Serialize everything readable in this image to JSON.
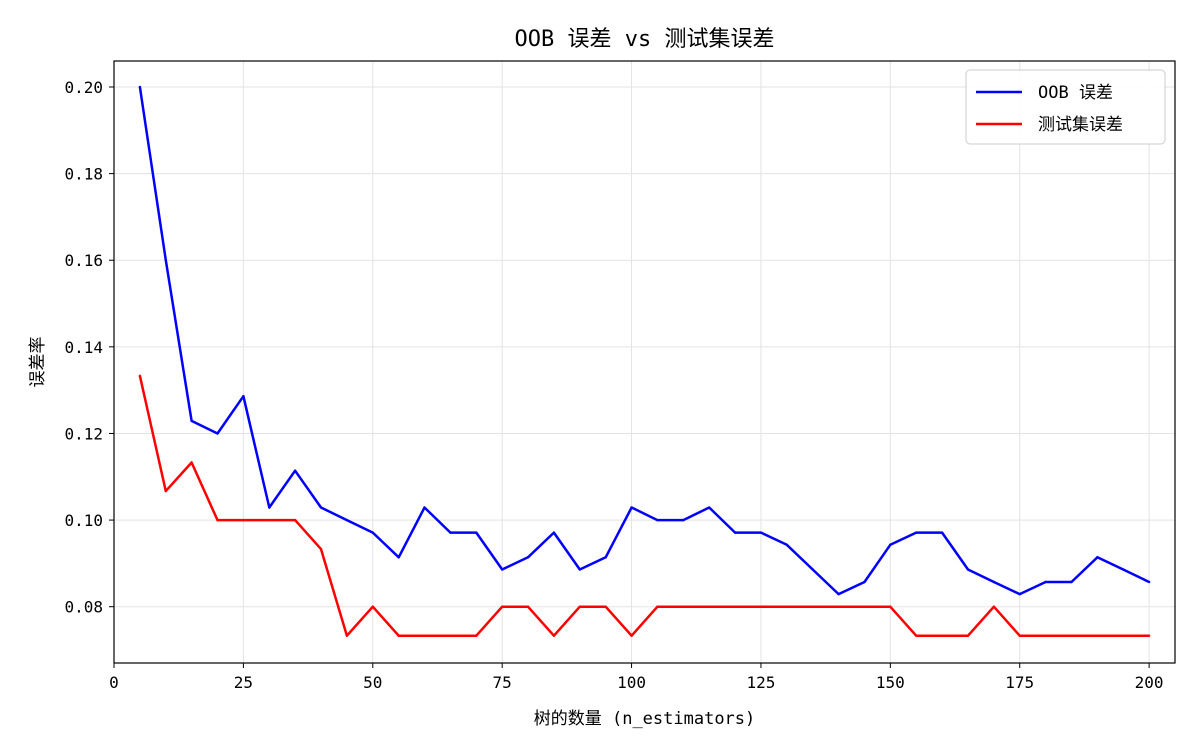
{
  "chart_data": {
    "type": "line",
    "title": "OOB 误差 vs 测试集误差",
    "xlabel": "树的数量 (n_estimators)",
    "ylabel": "误差率",
    "xlim": [
      0,
      205
    ],
    "ylim": [
      0.067,
      0.206
    ],
    "xticks": [
      0,
      25,
      50,
      75,
      100,
      125,
      150,
      175,
      200
    ],
    "yticks": [
      0.08,
      0.1,
      0.12,
      0.14,
      0.16,
      0.18,
      0.2
    ],
    "ytick_labels": [
      "0.08",
      "0.10",
      "0.12",
      "0.14",
      "0.16",
      "0.18",
      "0.20"
    ],
    "grid": true,
    "legend_position": "top-right",
    "x": [
      5,
      10,
      15,
      20,
      25,
      30,
      35,
      40,
      45,
      50,
      55,
      60,
      65,
      70,
      75,
      80,
      85,
      90,
      95,
      100,
      105,
      110,
      115,
      120,
      125,
      130,
      135,
      140,
      145,
      150,
      155,
      160,
      165,
      170,
      175,
      180,
      185,
      190,
      195,
      200
    ],
    "series": [
      {
        "name": "OOB 误差",
        "color": "#0000ff",
        "values": [
          0.2,
          0.16,
          0.1229,
          0.12,
          0.1286,
          0.1029,
          0.1114,
          0.1029,
          0.1,
          0.0971,
          0.0914,
          0.1029,
          0.0971,
          0.0971,
          0.0886,
          0.0914,
          0.0971,
          0.0886,
          0.0914,
          0.1029,
          0.1,
          0.1,
          0.1029,
          0.0971,
          0.0971,
          0.0943,
          0.0886,
          0.0829,
          0.0857,
          0.0943,
          0.0971,
          0.0971,
          0.0886,
          0.0857,
          0.0829,
          0.0857,
          0.0857,
          0.0914,
          0.0886,
          0.0857
        ]
      },
      {
        "name": "测试集误差",
        "color": "#ff0000",
        "values": [
          0.1333,
          0.1067,
          0.1133,
          0.1,
          0.1,
          0.1,
          0.1,
          0.0933,
          0.0733,
          0.08,
          0.0733,
          0.0733,
          0.0733,
          0.0733,
          0.08,
          0.08,
          0.0733,
          0.08,
          0.08,
          0.0733,
          0.08,
          0.08,
          0.08,
          0.08,
          0.08,
          0.08,
          0.08,
          0.08,
          0.08,
          0.08,
          0.0733,
          0.0733,
          0.0733,
          0.08,
          0.0733,
          0.0733,
          0.0733,
          0.0733,
          0.0733,
          0.0733
        ]
      }
    ]
  }
}
